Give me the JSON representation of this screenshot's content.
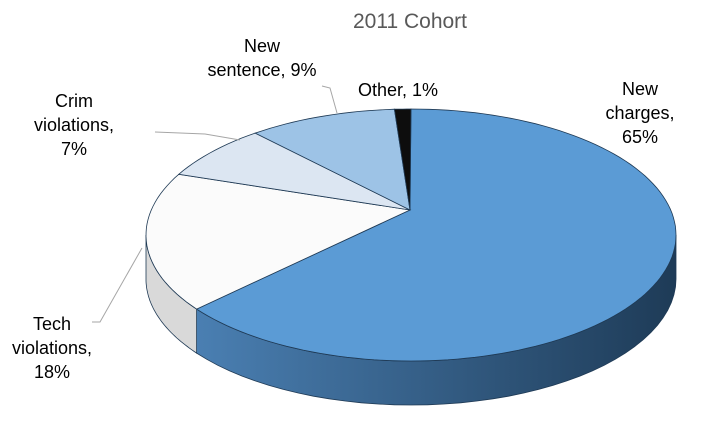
{
  "chart_data": {
    "type": "pie3d",
    "title": "2011 Cohort",
    "values": [
      65,
      18,
      7,
      9,
      1
    ],
    "value_labels": [
      "New charges,\n65%",
      "Tech\nviolations,\n18%",
      "Crim\nviolations,\n7%",
      "New\nsentence, 9%",
      "Other, 1%"
    ],
    "colors": [
      "#5b9bd5",
      "#fbfbfb",
      "#dce6f2",
      "#9dc3e6",
      "#0d0d0d"
    ]
  }
}
